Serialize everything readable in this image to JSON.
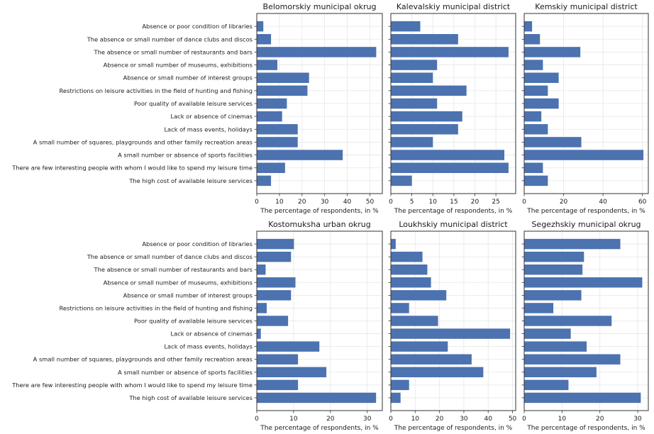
{
  "chart_data": {
    "type": "bar",
    "orientation": "horizontal",
    "bar_color": "#4c72b0",
    "grid": true,
    "categories": [
      "Absence or poor condition of libraries",
      "The absence or small number of dance clubs and discos",
      "The absence or small number of restaurants and bars",
      "Absence or small number of museums, exhibitions",
      "Absence or small number of interest groups",
      "Restrictions on leisure activities in the field of hunting and fishing",
      "Poor quality of available leisure services",
      "Lack or absence of cinemas",
      "Lack of mass events, holidays",
      "A small number of squares, playgrounds and other family recreation areas",
      "A small number or absence of sports facilities",
      "There are few interesting people with whom I would like to spend my leisure time",
      "The high cost of available leisure services"
    ],
    "panels": [
      {
        "title": "Belomorskiy municipal okrug",
        "xlabel": "The percentage of respondents, in %",
        "xlim": [
          0,
          55.5
        ],
        "xticks": [
          0,
          10,
          20,
          30,
          40,
          50
        ],
        "values": [
          2.9,
          6.3,
          52.8,
          9.1,
          23.1,
          22.4,
          13.3,
          11.2,
          18.1,
          18.1,
          38.0,
          12.5,
          6.3
        ]
      },
      {
        "title": "Kalevalskiy municipal district",
        "xlabel": "The percentage of respondents, in %",
        "xlim": [
          0,
          29.7
        ],
        "xticks": [
          0,
          5,
          10,
          15,
          20,
          25
        ],
        "values": [
          7,
          16,
          28,
          11,
          10,
          18,
          11,
          17,
          16,
          10,
          27,
          28,
          5
        ]
      },
      {
        "title": "Kemskiy municipal district",
        "xlabel": "The percentage of respondents, in %",
        "xlim": [
          0,
          63
        ],
        "xticks": [
          0,
          20,
          40,
          60
        ],
        "values": [
          4.0,
          8.0,
          28.5,
          9.5,
          17.5,
          12.0,
          17.5,
          8.7,
          12.0,
          29.0,
          60.5,
          9.5,
          12.0
        ]
      },
      {
        "title": "Kostomuksha urban okrug",
        "xlabel": "The percentage of respondents, in %",
        "xlim": [
          0,
          34.1
        ],
        "xticks": [
          0,
          10,
          20,
          30
        ],
        "values": [
          10.1,
          9.3,
          2.4,
          10.5,
          9.3,
          2.7,
          8.5,
          1.1,
          17.0,
          11.2,
          18.9,
          11.2,
          32.4
        ]
      },
      {
        "title": "Loukhskiy municipal district",
        "xlabel": "The percentage of respondents, in %",
        "xlim": [
          0,
          51.3
        ],
        "xticks": [
          0,
          10,
          20,
          30,
          40,
          50
        ],
        "values": [
          2.0,
          13.0,
          15.0,
          16.5,
          22.8,
          7.5,
          19.4,
          49.0,
          23.4,
          33.2,
          38.0,
          7.5,
          4.0
        ]
      },
      {
        "title": "Segezhskiy municipal okrug",
        "xlabel": "The percentage of respondents, in %",
        "xlim": [
          0,
          32.8
        ],
        "xticks": [
          0,
          10,
          20,
          30
        ],
        "values": [
          25.4,
          15.8,
          15.4,
          31.2,
          15.1,
          7.7,
          23.1,
          12.3,
          16.5,
          25.4,
          19.1,
          11.7,
          30.8
        ]
      }
    ]
  }
}
